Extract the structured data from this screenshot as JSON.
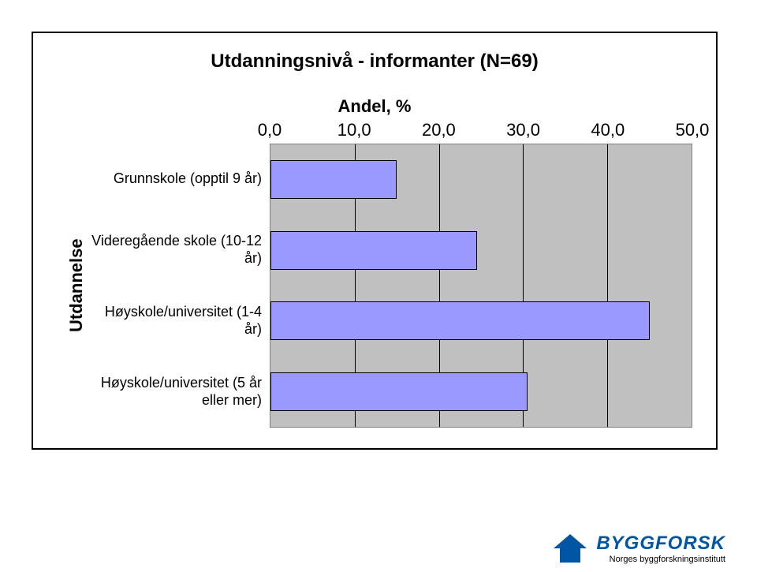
{
  "chart": {
    "type": "bar-horizontal",
    "title": "Utdanningsnivå - informanter (N=69)",
    "title_fontsize": 24,
    "xaxis": {
      "title": "Andel, %",
      "title_fontsize": 22,
      "min": 0.0,
      "max": 50.0,
      "tick_step": 10.0,
      "ticks": [
        "0,0",
        "10,0",
        "20,0",
        "30,0",
        "40,0",
        "50,0"
      ],
      "tick_fontsize": 22
    },
    "yaxis": {
      "title": "Utdannelse",
      "title_fontsize": 22,
      "label_fontsize": 18
    },
    "categories": [
      "Grunnskole (opptil 9 år)",
      "Videregående skole (10-12 år)",
      "Høyskole/universitet (1-4 år)",
      "Høyskole/universitet (5 år eller mer)"
    ],
    "values": [
      15.0,
      24.5,
      45.0,
      30.5
    ],
    "bar_color": "#9999ff",
    "bar_border_color": "#000000",
    "bar_width_ratio": 0.55,
    "plot_background": "#c0c0c0",
    "plot_border_color": "#808080",
    "grid_color": "#000000",
    "frame_border_color": "#000000",
    "background_color": "#ffffff"
  },
  "branding": {
    "name": "BYGGFORSK",
    "name_color": "#0056a4",
    "name_fontsize": 24,
    "subtitle": "Norges byggforskningsinstitutt",
    "subtitle_color": "#000000",
    "logo_color": "#0056a4"
  }
}
